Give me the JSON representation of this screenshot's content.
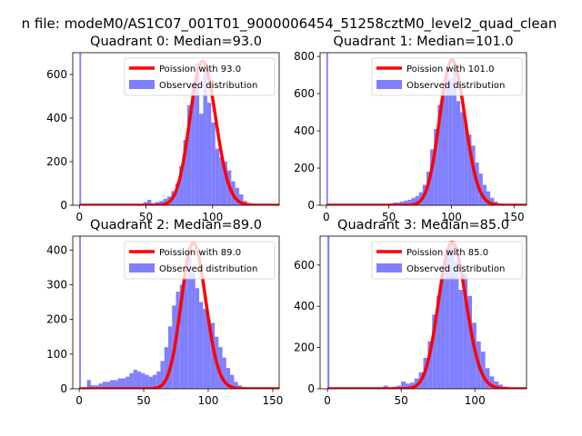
{
  "figure": {
    "title": "n file: modeM0/AS1C07_001T01_9000006454_51258cztM0_level2_quad_clean"
  },
  "colors": {
    "poisson": "#ff0000",
    "observed": "#8080ff"
  },
  "chart_data": [
    {
      "type": "bar",
      "title": "Quadrant 0: Median=93.0",
      "xlim": [
        -5,
        150
      ],
      "ylim": [
        0,
        700
      ],
      "xticks": [
        0,
        50,
        100
      ],
      "yticks": [
        0,
        200,
        400,
        600
      ],
      "median": 93.0,
      "peak_model": 660,
      "legend": [
        "Poission with 93.0",
        "Observed distribution"
      ],
      "hist_bins": [
        0,
        1.3,
        36,
        39,
        42,
        45,
        48,
        51,
        54,
        57,
        60,
        63,
        66,
        69,
        72,
        75,
        78,
        81,
        84,
        87,
        90,
        93,
        96,
        99,
        102,
        105,
        108,
        111,
        114,
        117,
        120,
        123,
        126,
        129
      ],
      "hist_counts": [
        700,
        0,
        3,
        5,
        4,
        6,
        15,
        25,
        10,
        15,
        20,
        30,
        40,
        65,
        100,
        180,
        300,
        460,
        560,
        650,
        420,
        620,
        470,
        380,
        260,
        220,
        200,
        160,
        110,
        80,
        50,
        20,
        10
      ]
    },
    {
      "type": "bar",
      "title": "Quadrant 1: Median=101.0",
      "xlim": [
        -5,
        160
      ],
      "ylim": [
        0,
        820
      ],
      "xticks": [
        0,
        50,
        100,
        150
      ],
      "yticks": [
        0,
        200,
        400,
        600,
        800
      ],
      "median": 101.0,
      "peak_model": 780,
      "legend": [
        "Poission with 101.0",
        "Observed distribution"
      ],
      "hist_bins": [
        0,
        1.3,
        50,
        53,
        56,
        59,
        62,
        65,
        68,
        71,
        74,
        77,
        80,
        83,
        86,
        89,
        92,
        95,
        98,
        101,
        104,
        107,
        110,
        113,
        116,
        119,
        122,
        125,
        128,
        131,
        134,
        137,
        140,
        143
      ],
      "hist_counts": [
        820,
        0,
        10,
        15,
        15,
        20,
        25,
        30,
        40,
        50,
        70,
        110,
        180,
        300,
        410,
        540,
        620,
        710,
        680,
        760,
        560,
        500,
        440,
        380,
        320,
        230,
        170,
        110,
        75,
        40,
        20,
        10,
        5
      ]
    },
    {
      "type": "bar",
      "title": "Quadrant 2: Median=89.0",
      "xlim": [
        -5,
        155
      ],
      "ylim": [
        0,
        440
      ],
      "xticks": [
        0,
        50,
        100,
        150
      ],
      "yticks": [
        0,
        100,
        200,
        300,
        400
      ],
      "median": 89.0,
      "peak_model": 420,
      "legend": [
        "Poission with 89.0",
        "Observed distribution"
      ],
      "hist_bins": [
        0,
        1.3,
        6,
        9,
        12,
        15,
        18,
        21,
        24,
        27,
        30,
        33,
        36,
        39,
        42,
        45,
        48,
        51,
        54,
        57,
        60,
        63,
        66,
        69,
        72,
        75,
        78,
        81,
        84,
        87,
        90,
        93,
        96,
        99,
        102,
        105,
        108,
        111,
        114,
        117,
        120,
        123,
        126
      ],
      "hist_counts": [
        440,
        0,
        25,
        10,
        10,
        15,
        20,
        20,
        25,
        25,
        30,
        30,
        35,
        45,
        55,
        50,
        45,
        40,
        35,
        40,
        50,
        80,
        120,
        180,
        240,
        280,
        300,
        320,
        380,
        340,
        290,
        250,
        230,
        200,
        190,
        150,
        120,
        90,
        60,
        40,
        20,
        10
      ]
    },
    {
      "type": "bar",
      "title": "Quadrant 3: Median=85.0",
      "xlim": [
        -5,
        135
      ],
      "ylim": [
        0,
        740
      ],
      "xticks": [
        0,
        50,
        100
      ],
      "yticks": [
        0,
        200,
        400,
        600
      ],
      "median": 85.0,
      "peak_model": 710,
      "legend": [
        "Poission with 85.0",
        "Observed distribution"
      ],
      "hist_bins": [
        0,
        1.3,
        38,
        41,
        44,
        47,
        50,
        53,
        56,
        59,
        62,
        65,
        68,
        71,
        74,
        77,
        80,
        83,
        86,
        89,
        92,
        95,
        98,
        101,
        104,
        107,
        110,
        113,
        116,
        119,
        122
      ],
      "hist_counts": [
        740,
        0,
        15,
        5,
        10,
        15,
        35,
        25,
        30,
        50,
        80,
        150,
        230,
        360,
        450,
        560,
        680,
        710,
        620,
        480,
        560,
        450,
        320,
        230,
        180,
        100,
        60,
        35,
        20,
        10
      ]
    }
  ]
}
